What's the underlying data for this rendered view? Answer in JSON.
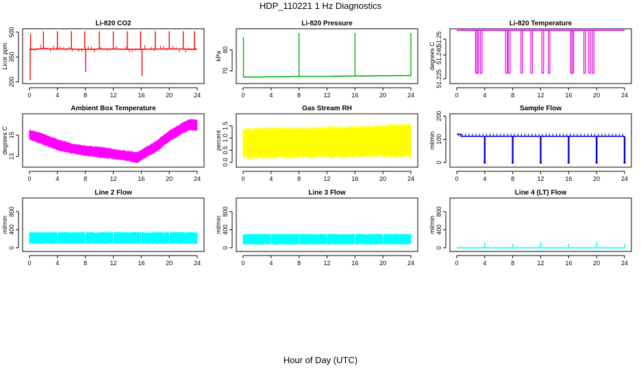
{
  "figure": {
    "title": "HDP_110221  1 Hz Diagnostics",
    "xlabel": "Hour of Day (UTC)"
  },
  "chart_data": [
    {
      "type": "line",
      "title": "Li-820 CO2",
      "ylabel": "Licor ppm",
      "color": "#ff0000",
      "xlim": [
        0,
        24
      ],
      "xticks": [
        0,
        4,
        8,
        12,
        16,
        20,
        24
      ],
      "ylim": [
        190,
        520
      ],
      "yticks": [
        200,
        350,
        500
      ],
      "series": [
        {
          "name": "CO2",
          "x": [
            0,
            2,
            4,
            6,
            8,
            10,
            12,
            14,
            16,
            18,
            20,
            22,
            24
          ],
          "values": [
            395,
            400,
            398,
            398,
            396,
            398,
            398,
            397,
            397,
            398,
            399,
            398,
            396
          ]
        }
      ],
      "spikes": [
        {
          "x": 0.1,
          "y": 210
        },
        {
          "x": 0.15,
          "y": 490
        },
        {
          "x": 2.0,
          "y": 505
        },
        {
          "x": 4.0,
          "y": 505
        },
        {
          "x": 6.0,
          "y": 505
        },
        {
          "x": 7.9,
          "y": 505
        },
        {
          "x": 8.05,
          "y": 260
        },
        {
          "x": 10.0,
          "y": 505
        },
        {
          "x": 12.0,
          "y": 505
        },
        {
          "x": 14.0,
          "y": 505
        },
        {
          "x": 15.9,
          "y": 505
        },
        {
          "x": 16.1,
          "y": 235
        },
        {
          "x": 18.0,
          "y": 505
        },
        {
          "x": 20.0,
          "y": 505
        },
        {
          "x": 22.0,
          "y": 505
        },
        {
          "x": 23.6,
          "y": 505
        }
      ]
    },
    {
      "type": "line",
      "title": "Li-820 Pressure",
      "ylabel": "kPa",
      "color": "#00b000",
      "xlim": [
        0,
        24
      ],
      "xticks": [
        0,
        4,
        8,
        12,
        16,
        20,
        24
      ],
      "ylim": [
        64,
        90
      ],
      "yticks": [
        70,
        80
      ],
      "series": [
        {
          "name": "Pressure",
          "x": [
            0,
            4,
            8,
            12,
            16,
            20,
            24
          ],
          "values": [
            67.1,
            67.2,
            67.4,
            67.4,
            67.6,
            67.7,
            67.8
          ]
        }
      ],
      "spikes": [
        {
          "x": 0.05,
          "y": 86
        },
        {
          "x": 8.0,
          "y": 88
        },
        {
          "x": 16.0,
          "y": 88
        },
        {
          "x": 24.0,
          "y": 88
        }
      ]
    },
    {
      "type": "line",
      "title": "Li-820 Temperature",
      "ylabel": "degrees C",
      "color": "#e000e0",
      "xlim": [
        0,
        24
      ],
      "xticks": [
        0,
        4,
        8,
        12,
        16,
        20,
        24
      ],
      "ylim": [
        51.222,
        51.2565
      ],
      "yticks": [
        51.225,
        51.24,
        51.25
      ],
      "ytick_labels": [
        "51.225",
        "51.240",
        "51.25"
      ],
      "series": [
        {
          "name": "Temperature",
          "x": [
            0,
            24
          ],
          "values": [
            51.2555,
            51.2555
          ]
        }
      ],
      "drops_to": 51.2285,
      "drops": [
        2.8,
        3.0,
        3.5,
        7.1,
        7.5,
        9.3,
        10.7,
        12.3,
        13.2,
        16.4,
        16.6,
        18.3,
        19.0,
        19.5
      ]
    },
    {
      "type": "area",
      "title": "Ambient Box Temperature",
      "ylabel": "degrees C",
      "color": "#ff00ff",
      "xlim": [
        0,
        24
      ],
      "xticks": [
        0,
        4,
        8,
        12,
        16,
        20,
        24
      ],
      "ylim": [
        12,
        17
      ],
      "yticks": [
        13,
        15
      ],
      "series": [
        {
          "name": "upper",
          "x": [
            0,
            2,
            4,
            6,
            8,
            10,
            12,
            14,
            15.5,
            16,
            18,
            20,
            22,
            23,
            24
          ],
          "values": [
            15.5,
            15.1,
            14.6,
            14.2,
            14.0,
            13.9,
            13.7,
            13.5,
            13.4,
            13.6,
            14.4,
            15.4,
            16.2,
            16.5,
            16.4
          ]
        },
        {
          "name": "lower",
          "x": [
            0,
            2,
            4,
            6,
            8,
            10,
            12,
            14,
            15.5,
            16,
            18,
            20,
            22,
            23,
            24
          ],
          "values": [
            14.6,
            14.1,
            13.6,
            13.3,
            13.1,
            12.9,
            12.8,
            12.6,
            12.4,
            12.7,
            13.4,
            14.4,
            15.2,
            15.5,
            15.4
          ]
        }
      ]
    },
    {
      "type": "area",
      "title": "Gas Stream RH",
      "ylabel": "percent",
      "color": "#ffff00",
      "xlim": [
        0,
        24
      ],
      "xticks": [
        0,
        4,
        8,
        12,
        16,
        20,
        24
      ],
      "ylim": [
        -0.2,
        2.0
      ],
      "yticks": [
        0.0,
        0.5,
        1.0,
        1.5
      ],
      "ytick_labels": [
        "0.0",
        "0.5",
        "1.0",
        "1.5"
      ],
      "series": [
        {
          "name": "upper",
          "x": [
            0,
            4,
            8,
            12,
            16,
            20,
            24
          ],
          "values": [
            1.35,
            1.4,
            1.4,
            1.42,
            1.45,
            1.5,
            1.55
          ]
        },
        {
          "name": "lower",
          "x": [
            0,
            4,
            8,
            12,
            16,
            20,
            24
          ],
          "values": [
            0.2,
            0.2,
            0.22,
            0.22,
            0.25,
            0.25,
            0.25
          ]
        }
      ]
    },
    {
      "type": "line",
      "title": "Sample Flow",
      "ylabel": "ml/min",
      "color": "#0000dd",
      "xlim": [
        0,
        24
      ],
      "xticks": [
        0,
        4,
        8,
        12,
        16,
        20,
        24
      ],
      "ylim": [
        -20,
        210
      ],
      "yticks": [
        0,
        100,
        200
      ],
      "series": [
        {
          "name": "Sample Flow",
          "x": [
            0,
            24
          ],
          "values": [
            113,
            113
          ]
        }
      ],
      "start_value": 122,
      "drops": [
        4,
        8,
        12,
        16,
        20,
        24
      ],
      "drop_value": 0
    },
    {
      "type": "area",
      "title": "Line 2 Flow",
      "ylabel": "ml/min",
      "color": "#00ffff",
      "xlim": [
        0,
        24
      ],
      "xticks": [
        0,
        4,
        8,
        12,
        16,
        20,
        24
      ],
      "ylim": [
        -80,
        1100
      ],
      "yticks": [
        0,
        400,
        800
      ],
      "series": [
        {
          "name": "upper",
          "x": [
            0,
            24
          ],
          "values": [
            340,
            340
          ]
        },
        {
          "name": "lower",
          "x": [
            0,
            24
          ],
          "values": [
            100,
            100
          ]
        }
      ],
      "gaps": [
        4,
        8,
        12,
        16,
        20
      ]
    },
    {
      "type": "area",
      "title": "Line 3 Flow",
      "ylabel": "ml/min",
      "color": "#00ffff",
      "xlim": [
        0,
        24
      ],
      "xticks": [
        0,
        4,
        8,
        12,
        16,
        20,
        24
      ],
      "ylim": [
        -80,
        1100
      ],
      "yticks": [
        0,
        400,
        800
      ],
      "series": [
        {
          "name": "upper",
          "x": [
            0,
            24
          ],
          "values": [
            300,
            300
          ]
        },
        {
          "name": "lower",
          "x": [
            0,
            24
          ],
          "values": [
            80,
            80
          ]
        }
      ],
      "gaps": [
        4,
        8,
        12,
        16,
        20
      ]
    },
    {
      "type": "line",
      "title": "Line 4 (LT) Flow",
      "ylabel": "ml/min",
      "color": "#00ffff",
      "xlim": [
        0,
        24
      ],
      "xticks": [
        0,
        4,
        8,
        12,
        16,
        20,
        24
      ],
      "ylim": [
        -80,
        1100
      ],
      "yticks": [
        0,
        400,
        800
      ],
      "series": [
        {
          "name": "Line 4",
          "x": [
            0,
            24
          ],
          "values": [
            0,
            0
          ]
        }
      ],
      "spikes": [
        {
          "x": 4,
          "y": 130
        },
        {
          "x": 8,
          "y": 90
        },
        {
          "x": 12,
          "y": 130
        },
        {
          "x": 16,
          "y": 90
        },
        {
          "x": 20,
          "y": 130
        },
        {
          "x": 24,
          "y": 90
        }
      ]
    }
  ]
}
